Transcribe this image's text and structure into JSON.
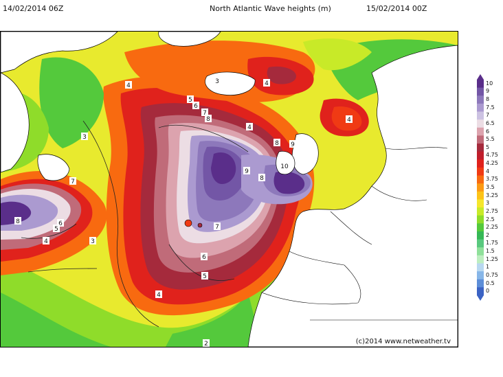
{
  "header": {
    "left_time": "14/02/2014 06Z",
    "title": "North Atlantic Wave heights (m)",
    "right_time": "15/02/2014 00Z"
  },
  "credit": "(c)2014 www.netweather.tv",
  "legend": {
    "levels": [
      {
        "label": "10",
        "color": "#5a2e8a"
      },
      {
        "label": "9",
        "color": "#7356a6"
      },
      {
        "label": "8",
        "color": "#8d78bb"
      },
      {
        "label": "7.5",
        "color": "#ab9ad0"
      },
      {
        "label": "7",
        "color": "#ccc2e2"
      },
      {
        "label": "6.5",
        "color": "#ecdde4"
      },
      {
        "label": "6",
        "color": "#dca3ae"
      },
      {
        "label": "5.5",
        "color": "#c06b79"
      },
      {
        "label": "5",
        "color": "#a52a3c"
      },
      {
        "label": "4.75",
        "color": "#c01e2c"
      },
      {
        "label": "4.25",
        "color": "#e0221c"
      },
      {
        "label": "4",
        "color": "#f03a14"
      },
      {
        "label": "3.75",
        "color": "#f86a10"
      },
      {
        "label": "3.5",
        "color": "#fc9a14"
      },
      {
        "label": "3.25",
        "color": "#fdc318"
      },
      {
        "label": "3",
        "color": "#f5e62c"
      },
      {
        "label": "2.75",
        "color": "#c8ea28"
      },
      {
        "label": "2.5",
        "color": "#8fdc2a"
      },
      {
        "label": "2.25",
        "color": "#54c93c"
      },
      {
        "label": "2",
        "color": "#36b856"
      },
      {
        "label": "1.75",
        "color": "#59c97e"
      },
      {
        "label": "1.5",
        "color": "#8fe09a"
      },
      {
        "label": "1.25",
        "color": "#bdeec0"
      },
      {
        "label": "1",
        "color": "#b8d8f0"
      },
      {
        "label": "0.75",
        "color": "#87b6e8"
      },
      {
        "label": "0.5",
        "color": "#5d8ed8"
      },
      {
        "label": "0",
        "color": "#3b63c4"
      }
    ]
  },
  "contour_labels": [
    {
      "text": "4",
      "id": "a"
    },
    {
      "text": "3",
      "id": "b"
    },
    {
      "text": "3",
      "id": "c"
    },
    {
      "text": "4",
      "id": "d"
    },
    {
      "text": "4",
      "id": "e"
    },
    {
      "text": "5",
      "id": "f"
    },
    {
      "text": "6",
      "id": "g"
    },
    {
      "text": "7",
      "id": "h"
    },
    {
      "text": "8",
      "id": "i"
    },
    {
      "text": "4",
      "id": "j"
    },
    {
      "text": "8",
      "id": "k"
    },
    {
      "text": "9",
      "id": "l"
    },
    {
      "text": "9",
      "id": "m"
    },
    {
      "text": "10",
      "id": "n"
    },
    {
      "text": "8",
      "id": "o"
    },
    {
      "text": "7",
      "id": "p"
    },
    {
      "text": "7",
      "id": "q"
    },
    {
      "text": "6",
      "id": "r"
    },
    {
      "text": "5",
      "id": "s"
    },
    {
      "text": "4",
      "id": "t"
    },
    {
      "text": "8",
      "id": "u"
    },
    {
      "text": "6",
      "id": "v"
    },
    {
      "text": "5",
      "id": "w"
    },
    {
      "text": "4",
      "id": "x"
    },
    {
      "text": "3",
      "id": "y"
    },
    {
      "text": "2",
      "id": "z"
    }
  ]
}
